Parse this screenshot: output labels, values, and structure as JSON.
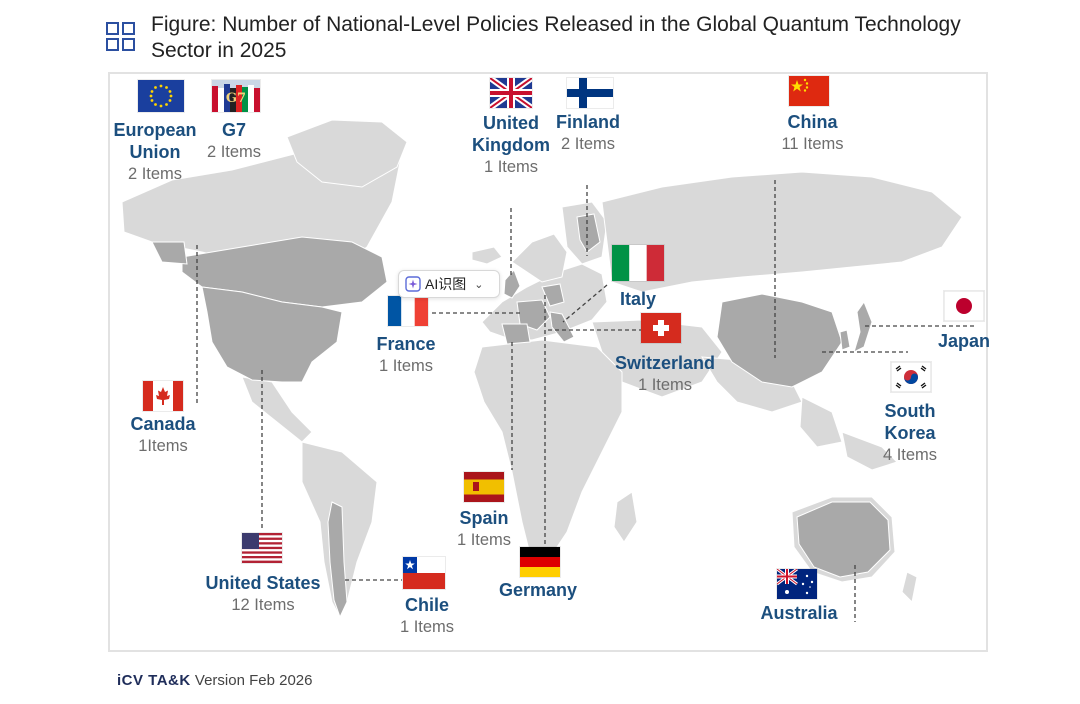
{
  "title": "Figure: Number of National-Level Policies Released in the Global Quantum Technology Sector in 2025",
  "ai_chip_label": "AI识图",
  "footer": {
    "brand": "iCV TA&K",
    "version": "Version Feb 2026"
  },
  "countries": [
    {
      "key": "eu",
      "name": "European Union",
      "count": "2 Items",
      "flag": "eu"
    },
    {
      "key": "g7",
      "name": "G7",
      "count": "2 Items",
      "flag": "g7"
    },
    {
      "key": "uk",
      "name": "United Kingdom",
      "count": "1 Items",
      "flag": "uk"
    },
    {
      "key": "finland",
      "name": "Finland",
      "count": "2 Items",
      "flag": "finland"
    },
    {
      "key": "china",
      "name": "China",
      "count": "11 Items",
      "flag": "china"
    },
    {
      "key": "italy",
      "name": "Italy",
      "count": "",
      "flag": "italy"
    },
    {
      "key": "japan",
      "name": "Japan",
      "count": "",
      "flag": "japan"
    },
    {
      "key": "france",
      "name": "France",
      "count": "1 Items",
      "flag": "france"
    },
    {
      "key": "switzerland",
      "name": "Switzerland",
      "count": "1 Items",
      "flag": "switzerland"
    },
    {
      "key": "canada",
      "name": "Canada",
      "count": "1Items",
      "flag": "canada"
    },
    {
      "key": "south_korea",
      "name": "South Korea",
      "count": "4 Items",
      "flag": "south_korea"
    },
    {
      "key": "spain",
      "name": "Spain",
      "count": "1 Items",
      "flag": "spain"
    },
    {
      "key": "germany",
      "name": "Germany",
      "count": "",
      "flag": "germany"
    },
    {
      "key": "usa",
      "name": "United States",
      "count": "12 Items",
      "flag": "usa"
    },
    {
      "key": "chile",
      "name": "Chile",
      "count": "1 Items",
      "flag": "chile"
    },
    {
      "key": "australia",
      "name": "Australia",
      "count": "",
      "flag": "australia"
    }
  ],
  "colors": {
    "land": "#d9d9d9",
    "highlight": "#a9a9a9",
    "label": "#1c4f7e",
    "count": "#6d6d6d",
    "leader": "#444444"
  }
}
